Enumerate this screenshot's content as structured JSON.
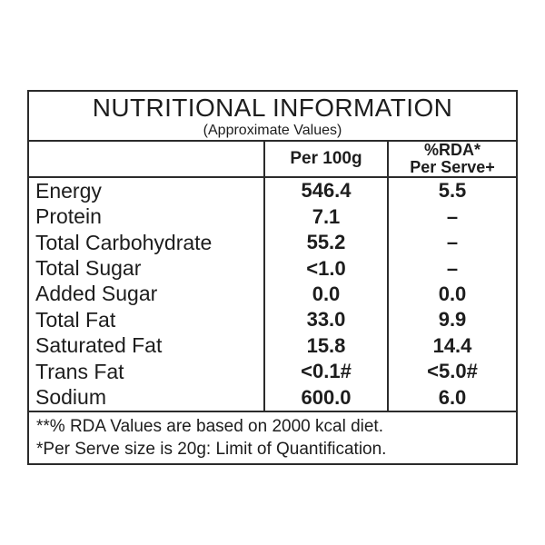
{
  "label": {
    "title": "NUTRITIONAL INFORMATION",
    "subtitle": "(Approximate Values)",
    "columns": {
      "per_100g": "Per 100g",
      "rda_line1": "%RDA*",
      "rda_line2": "Per Serve+"
    },
    "rows": [
      {
        "label": "Energy",
        "per_100g": "546.4",
        "rda_per_serve": "5.5"
      },
      {
        "label": "Protein",
        "per_100g": "7.1",
        "rda_per_serve": "–"
      },
      {
        "label": "Total Carbohydrate",
        "per_100g": "55.2",
        "rda_per_serve": "–"
      },
      {
        "label": "Total Sugar",
        "per_100g": "<1.0",
        "rda_per_serve": "–"
      },
      {
        "label": "Added Sugar",
        "per_100g": "0.0",
        "rda_per_serve": "0.0"
      },
      {
        "label": "Total Fat",
        "per_100g": "33.0",
        "rda_per_serve": "9.9"
      },
      {
        "label": "Saturated Fat",
        "per_100g": "15.8",
        "rda_per_serve": "14.4"
      },
      {
        "label": "Trans Fat",
        "per_100g": "<0.1#",
        "rda_per_serve": "<5.0#"
      },
      {
        "label": "Sodium",
        "per_100g": "600.0",
        "rda_per_serve": "6.0"
      }
    ],
    "footnotes": [
      "**% RDA Values are based on 2000 kcal diet.",
      "*Per Serve size is 20g: Limit of Quantification."
    ],
    "colors": {
      "background": "#ffffff",
      "border": "#2b2b2b",
      "text": "#1d1d1d"
    }
  }
}
